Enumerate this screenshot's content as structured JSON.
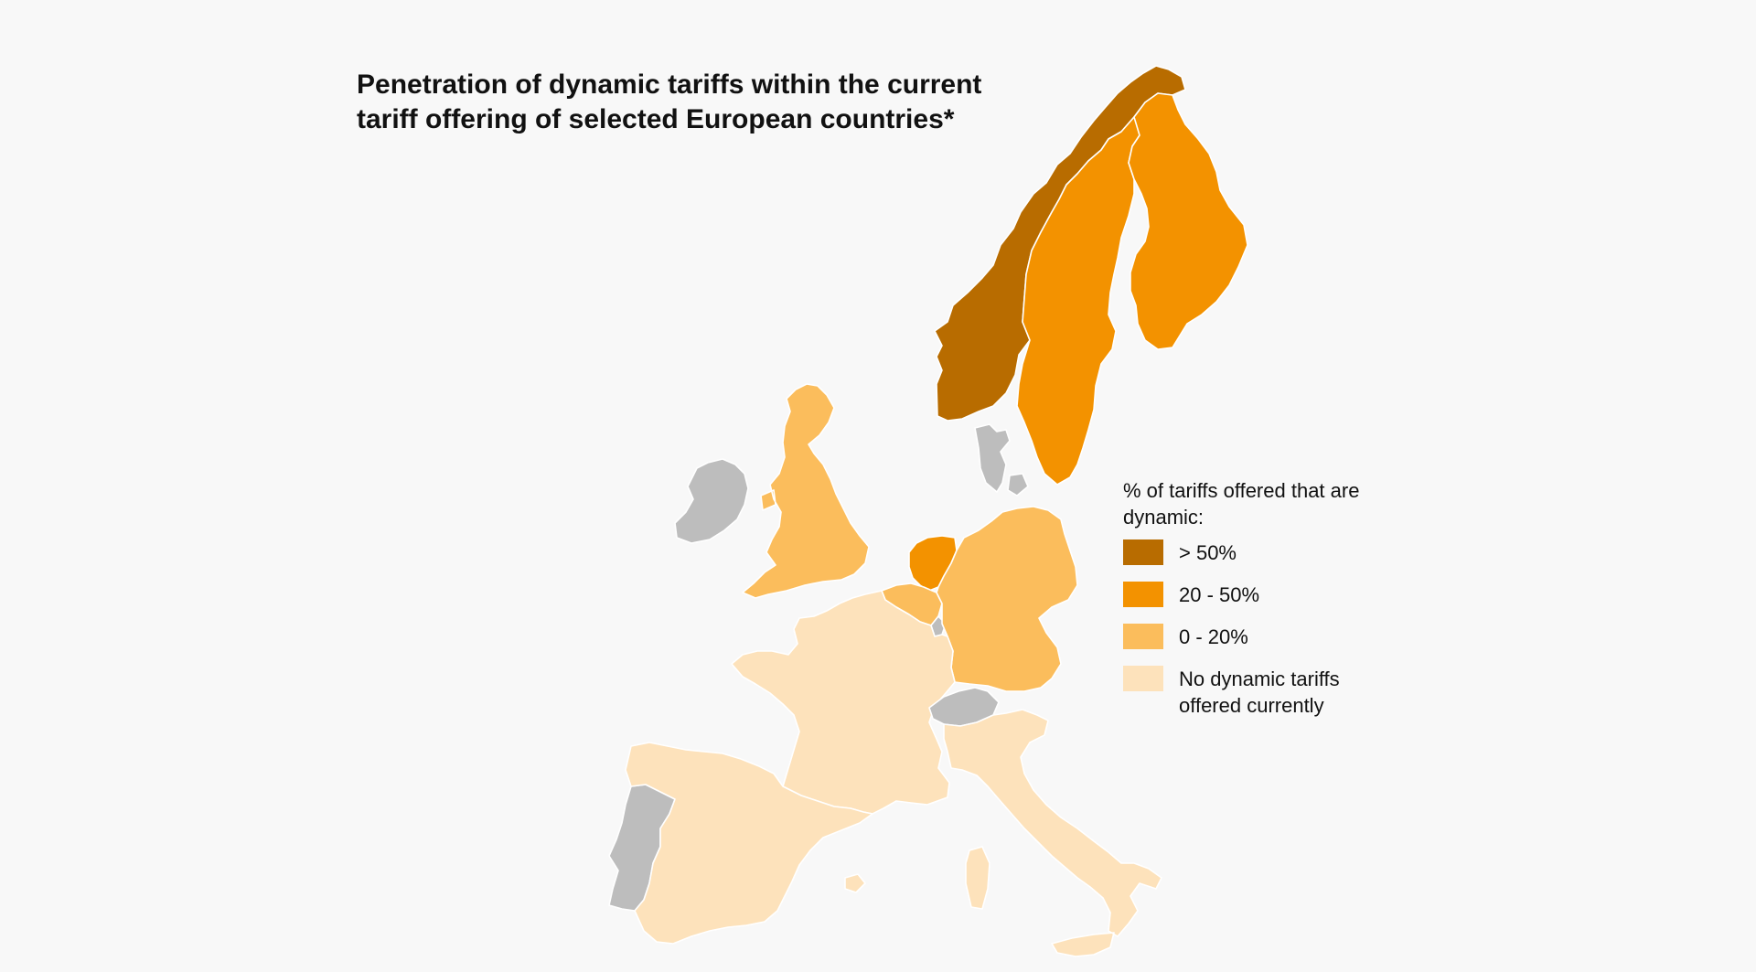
{
  "title": "Penetration of dynamic tariffs within the current tariff offering of selected European countries*",
  "colors": {
    "over_50": "#b86c00",
    "20_50": "#f39200",
    "0_20": "#fbbd5c",
    "none": "#fde2bb",
    "no_data": "#bdbdbd",
    "background": "#f8f8f8"
  },
  "legend": {
    "title": "% of tariffs offered that are dynamic:",
    "items": [
      {
        "key": "over_50",
        "label": "> 50%"
      },
      {
        "key": "20_50",
        "label": "20 - 50%"
      },
      {
        "key": "0_20",
        "label": "0 - 20%"
      },
      {
        "key": "none",
        "label": "No dynamic tariffs offered currently"
      }
    ]
  },
  "countries": [
    {
      "name": "Norway",
      "category": "over_50"
    },
    {
      "name": "Sweden",
      "category": "20_50"
    },
    {
      "name": "Finland",
      "category": "20_50"
    },
    {
      "name": "Netherlands",
      "category": "20_50"
    },
    {
      "name": "United Kingdom",
      "category": "0_20"
    },
    {
      "name": "Germany",
      "category": "0_20"
    },
    {
      "name": "Belgium",
      "category": "0_20"
    },
    {
      "name": "France",
      "category": "none"
    },
    {
      "name": "Spain",
      "category": "none"
    },
    {
      "name": "Italy",
      "category": "none"
    },
    {
      "name": "Ireland",
      "category": "no_data"
    },
    {
      "name": "Portugal",
      "category": "no_data"
    },
    {
      "name": "Denmark",
      "category": "no_data"
    },
    {
      "name": "Switzerland",
      "category": "no_data"
    },
    {
      "name": "Luxembourg",
      "category": "no_data"
    }
  ]
}
